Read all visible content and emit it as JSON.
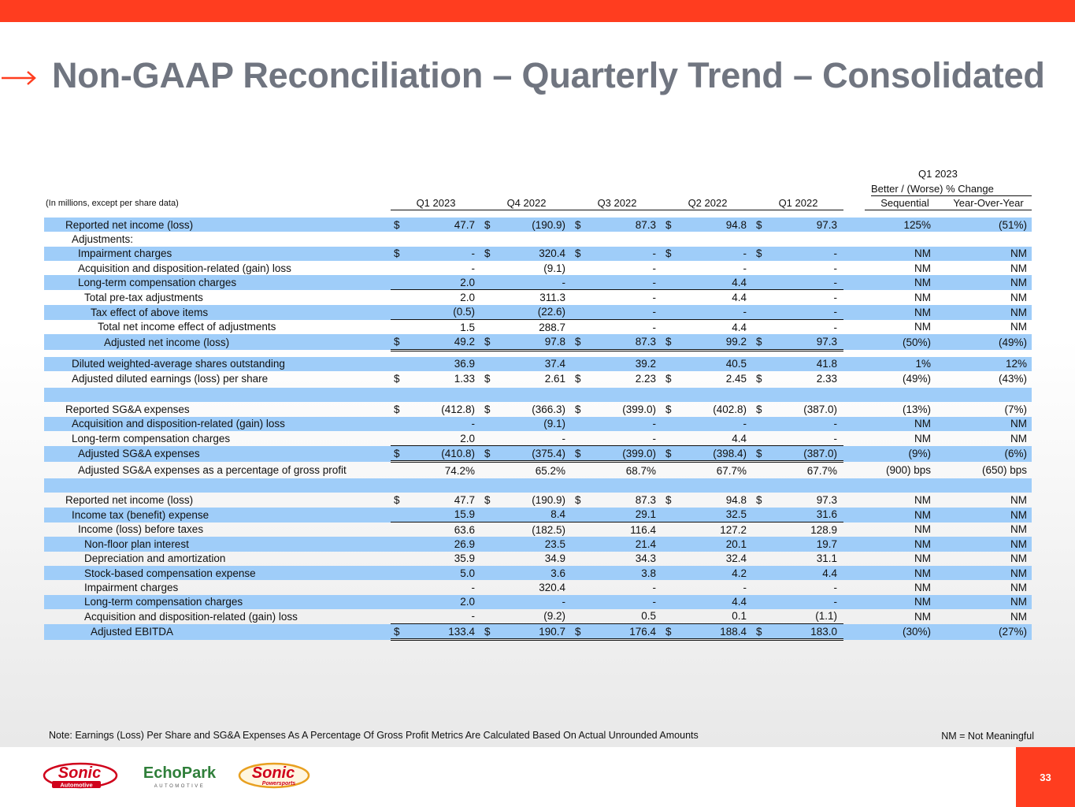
{
  "title": "Non-GAAP Reconciliation – Quarterly Trend – Consolidated",
  "units_note": "(In millions, except per share data)",
  "header": {
    "columns": [
      "Q1 2023",
      "Q4 2022",
      "Q3 2022",
      "Q2 2022",
      "Q1 2022"
    ],
    "change_group": {
      "line1": "Q1 2023",
      "line2": "Better / (Worse) % Change"
    },
    "change_columns": [
      "Sequential",
      "Year-Over-Year"
    ]
  },
  "rows": [
    {
      "label": "Reported net income (loss)",
      "dollar": true,
      "values": [
        "47.7",
        "(190.9)",
        "87.3",
        "94.8",
        "97.3"
      ],
      "seq": "125%",
      "yoy": "(51%)"
    },
    {
      "label": "Adjustments:",
      "dollar": false,
      "values": [
        "",
        "",
        "",
        "",
        ""
      ],
      "seq": "",
      "yoy": ""
    },
    {
      "label": "Impairment charges",
      "dollar": true,
      "values": [
        "-",
        "320.4",
        "-",
        "-",
        "-"
      ],
      "seq": "NM",
      "yoy": "NM"
    },
    {
      "label": "Acquisition and disposition-related (gain) loss",
      "dollar": false,
      "values": [
        "-",
        "(9.1)",
        "-",
        "-",
        "-"
      ],
      "seq": "NM",
      "yoy": "NM"
    },
    {
      "label": "Long-term compensation charges",
      "dollar": false,
      "values": [
        "2.0",
        "-",
        "-",
        "4.4",
        "-"
      ],
      "seq": "NM",
      "yoy": "NM"
    },
    {
      "label": "Total pre-tax adjustments",
      "dollar": false,
      "values": [
        "2.0",
        "311.3",
        "-",
        "4.4",
        "-"
      ],
      "seq": "NM",
      "yoy": "NM"
    },
    {
      "label": "Tax effect of above items",
      "dollar": false,
      "values": [
        "(0.5)",
        "(22.6)",
        "-",
        "-",
        "-"
      ],
      "seq": "NM",
      "yoy": "NM"
    },
    {
      "label": "Total net income effect of adjustments",
      "dollar": false,
      "values": [
        "1.5",
        "288.7",
        "-",
        "4.4",
        "-"
      ],
      "seq": "NM",
      "yoy": "NM"
    },
    {
      "label": "Adjusted net income (loss)",
      "dollar": true,
      "values": [
        "49.2",
        "97.8",
        "87.3",
        "99.2",
        "97.3"
      ],
      "seq": "(50%)",
      "yoy": "(49%)"
    },
    {
      "label": "Diluted weighted-average shares outstanding",
      "dollar": false,
      "values": [
        "36.9",
        "37.4",
        "39.2",
        "40.5",
        "41.8"
      ],
      "seq": "1%",
      "yoy": "12%"
    },
    {
      "label": "Adjusted diluted earnings (loss) per share",
      "dollar": true,
      "values": [
        "1.33",
        "2.61",
        "2.23",
        "2.45",
        "2.33"
      ],
      "seq": "(49%)",
      "yoy": "(43%)"
    },
    {
      "label": "Reported SG&A expenses",
      "dollar": true,
      "values": [
        "(412.8)",
        "(366.3)",
        "(399.0)",
        "(402.8)",
        "(387.0)"
      ],
      "seq": "(13%)",
      "yoy": "(7%)"
    },
    {
      "label": "Acquisition and disposition-related (gain) loss",
      "dollar": false,
      "values": [
        "-",
        "(9.1)",
        "-",
        "-",
        "-"
      ],
      "seq": "NM",
      "yoy": "NM"
    },
    {
      "label": "Long-term compensation charges",
      "dollar": false,
      "values": [
        "2.0",
        "-",
        "-",
        "4.4",
        "-"
      ],
      "seq": "NM",
      "yoy": "NM"
    },
    {
      "label": "Adjusted SG&A expenses",
      "dollar": true,
      "values": [
        "(410.8)",
        "(375.4)",
        "(399.0)",
        "(398.4)",
        "(387.0)"
      ],
      "seq": "(9%)",
      "yoy": "(6%)"
    },
    {
      "label": "Adjusted SG&A expenses as a percentage of gross profit",
      "dollar": false,
      "values": [
        "74.2%",
        "65.2%",
        "68.7%",
        "67.7%",
        "67.7%"
      ],
      "seq": "(900) bps",
      "yoy": "(650) bps"
    },
    {
      "label": "Reported net income (loss)",
      "dollar": true,
      "values": [
        "47.7",
        "(190.9)",
        "87.3",
        "94.8",
        "97.3"
      ],
      "seq": "NM",
      "yoy": "NM"
    },
    {
      "label": "Income tax (benefit) expense",
      "dollar": false,
      "values": [
        "15.9",
        "8.4",
        "29.1",
        "32.5",
        "31.6"
      ],
      "seq": "NM",
      "yoy": "NM"
    },
    {
      "label": "Income (loss) before taxes",
      "dollar": false,
      "values": [
        "63.6",
        "(182.5)",
        "116.4",
        "127.2",
        "128.9"
      ],
      "seq": "NM",
      "yoy": "NM"
    },
    {
      "label": "Non-floor plan interest",
      "dollar": false,
      "values": [
        "26.9",
        "23.5",
        "21.4",
        "20.1",
        "19.7"
      ],
      "seq": "NM",
      "yoy": "NM"
    },
    {
      "label": "Depreciation and amortization",
      "dollar": false,
      "values": [
        "35.9",
        "34.9",
        "34.3",
        "32.4",
        "31.1"
      ],
      "seq": "NM",
      "yoy": "NM"
    },
    {
      "label": "Stock-based compensation expense",
      "dollar": false,
      "values": [
        "5.0",
        "3.6",
        "3.8",
        "4.2",
        "4.4"
      ],
      "seq": "NM",
      "yoy": "NM"
    },
    {
      "label": "Impairment charges",
      "dollar": false,
      "values": [
        "-",
        "320.4",
        "-",
        "-",
        "-"
      ],
      "seq": "NM",
      "yoy": "NM"
    },
    {
      "label": "Long-term compensation charges",
      "dollar": false,
      "values": [
        "2.0",
        "-",
        "-",
        "4.4",
        "-"
      ],
      "seq": "NM",
      "yoy": "NM"
    },
    {
      "label": "Acquisition and disposition-related (gain) loss",
      "dollar": false,
      "values": [
        "-",
        "(9.2)",
        "0.5",
        "0.1",
        "(1.1)"
      ],
      "seq": "NM",
      "yoy": "NM"
    },
    {
      "label": "Adjusted EBITDA",
      "dollar": true,
      "values": [
        "133.4",
        "190.7",
        "176.4",
        "188.4",
        "183.0"
      ],
      "seq": "(30%)",
      "yoy": "(27%)"
    }
  ],
  "currency_symbol": "$",
  "footnote": "Note: Earnings (Loss) Per Share and SG&A Expenses As A Percentage Of Gross Profit Metrics Are Calculated Based On Actual Unrounded Amounts",
  "nm_note": "NM = Not Meaningful",
  "page_number": "33",
  "logos": {
    "sonic_automotive": {
      "main": "Sonic",
      "sub": "Automotive"
    },
    "echopark": {
      "main": "EchoPark",
      "sub": "AUTOMOTIVE"
    },
    "sonic_powersports": {
      "main": "Sonic",
      "sub": "Powersports"
    }
  },
  "colors": {
    "brand_orange": "#ff3d1f",
    "row_shade": "#9fcdf9",
    "title_gray": "#707580"
  }
}
